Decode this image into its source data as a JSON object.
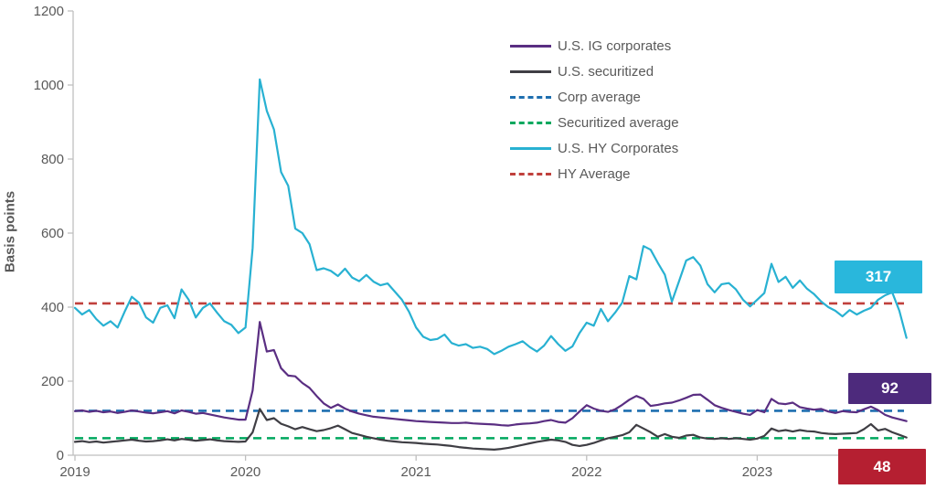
{
  "legend": {
    "items": [
      {
        "label": "U.S. IG corporates",
        "style": "solid",
        "color": "#5a2e82"
      },
      {
        "label": "U.S. securitized",
        "style": "solid",
        "color": "#3f3e44"
      },
      {
        "label": "Corp average",
        "style": "dashed",
        "color": "#1e6fb0"
      },
      {
        "label": "Securitized average",
        "style": "dashed",
        "color": "#00a85e"
      },
      {
        "label": "U.S. HY Corporates",
        "style": "solid",
        "color": "#28b1d2"
      },
      {
        "label": "HY Average",
        "style": "dashed",
        "color": "#c0403c"
      }
    ]
  },
  "chart_data": {
    "type": "line",
    "title": "",
    "xlabel": "",
    "ylabel": "Basis points",
    "x_start": 2019,
    "x_step": 0.0416667,
    "x_range": [
      2019,
      2023.9
    ],
    "ylim": [
      0,
      1200
    ],
    "grid": false,
    "x_tick_labels": [
      "2019",
      "2020",
      "2021",
      "2022",
      "2023"
    ],
    "x_tick_values": [
      2019,
      2020,
      2021,
      2022,
      2023
    ],
    "y_tick_values": [
      0,
      200,
      400,
      600,
      800,
      1000,
      1200
    ],
    "axis_color": "#bfbfbf",
    "tick_text_color": "#595959",
    "series": [
      {
        "name": "U.S. HY Corporates",
        "color": "#28b1d2",
        "style": "solid",
        "values": [
          398,
          380,
          392,
          368,
          350,
          362,
          345,
          388,
          428,
          412,
          372,
          358,
          398,
          405,
          370,
          448,
          420,
          372,
          398,
          410,
          385,
          362,
          352,
          330,
          345,
          560,
          1015,
          930,
          880,
          765,
          728,
          612,
          600,
          570,
          500,
          505,
          498,
          484,
          504,
          480,
          470,
          487,
          469,
          459,
          464,
          442,
          420,
          388,
          345,
          320,
          311,
          314,
          326,
          303,
          296,
          300,
          290,
          293,
          287,
          273,
          282,
          293,
          300,
          308,
          292,
          280,
          296,
          322,
          300,
          282,
          294,
          330,
          358,
          350,
          395,
          362,
          385,
          412,
          484,
          475,
          565,
          555,
          520,
          488,
          415,
          470,
          526,
          535,
          512,
          462,
          440,
          462,
          465,
          448,
          420,
          402,
          420,
          438,
          517,
          468,
          482,
          452,
          472,
          450,
          435,
          415,
          400,
          390,
          375,
          392,
          380,
          390,
          398,
          420,
          432,
          440,
          390,
          317
        ]
      },
      {
        "name": "U.S. IG corporates",
        "color": "#5a2e82",
        "style": "solid",
        "values": [
          119,
          121,
          117,
          120,
          116,
          118,
          114,
          117,
          121,
          118,
          115,
          113,
          116,
          119,
          113,
          121,
          117,
          112,
          114,
          110,
          106,
          102,
          99,
          96,
          96,
          175,
          360,
          280,
          284,
          235,
          215,
          213,
          195,
          182,
          160,
          140,
          128,
          137,
          126,
          118,
          112,
          108,
          104,
          102,
          100,
          98,
          96,
          94,
          92,
          91,
          90,
          89,
          88,
          87,
          87,
          88,
          86,
          85,
          84,
          83,
          81,
          80,
          83,
          85,
          86,
          88,
          92,
          95,
          90,
          88,
          100,
          118,
          135,
          126,
          120,
          117,
          124,
          136,
          150,
          160,
          152,
          133,
          136,
          140,
          142,
          148,
          155,
          163,
          164,
          150,
          135,
          128,
          122,
          117,
          112,
          109,
          122,
          116,
          152,
          140,
          138,
          142,
          130,
          126,
          123,
          125,
          118,
          114,
          119,
          117,
          116,
          124,
          131,
          122,
          109,
          102,
          97,
          92
        ]
      },
      {
        "name": "U.S. securitized",
        "color": "#3f3e44",
        "style": "solid",
        "values": [
          36,
          38,
          35,
          37,
          34,
          36,
          38,
          40,
          42,
          39,
          37,
          38,
          40,
          43,
          40,
          44,
          42,
          39,
          41,
          43,
          40,
          38,
          37,
          36,
          37,
          62,
          125,
          95,
          100,
          85,
          78,
          70,
          76,
          70,
          65,
          68,
          73,
          80,
          70,
          60,
          55,
          50,
          46,
          42,
          39,
          37,
          35,
          34,
          33,
          31,
          30,
          29,
          27,
          25,
          22,
          20,
          18,
          17,
          16,
          15,
          17,
          20,
          24,
          28,
          32,
          36,
          39,
          42,
          40,
          36,
          28,
          25,
          28,
          33,
          40,
          46,
          50,
          54,
          62,
          82,
          72,
          62,
          50,
          57,
          50,
          47,
          53,
          55,
          48,
          45,
          44,
          46,
          44,
          46,
          44,
          42,
          45,
          52,
          72,
          65,
          68,
          64,
          68,
          65,
          64,
          60,
          58,
          57,
          58,
          59,
          60,
          70,
          84,
          67,
          71,
          62,
          55,
          48
        ]
      }
    ],
    "averages": [
      {
        "name": "HY Average",
        "value": 410,
        "color": "#c0403c"
      },
      {
        "name": "Corp average",
        "value": 120,
        "color": "#1e6fb0"
      },
      {
        "name": "Securitized average",
        "value": 46,
        "color": "#00a85e"
      }
    ],
    "end_labels": [
      {
        "series": "U.S. HY Corporates",
        "text": "317",
        "box_color": "#29b7dc",
        "text_color": "#ffffff"
      },
      {
        "series": "U.S. IG corporates",
        "text": "92",
        "box_color": "#4d2a7c",
        "text_color": "#ffffff"
      },
      {
        "series": "U.S. securitized",
        "text": "48",
        "box_color": "#b51f31",
        "text_color": "#ffffff"
      }
    ]
  }
}
